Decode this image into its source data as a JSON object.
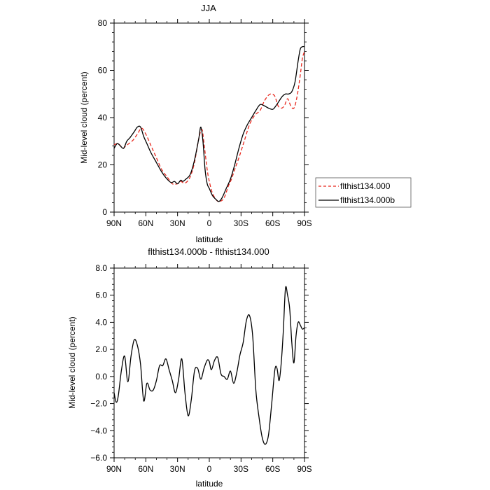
{
  "chart_data": [
    {
      "type": "line",
      "title": "JJA",
      "xlabel": "latitude",
      "ylabel": "Mid-level cloud (percent)",
      "xlim": [
        90,
        -90
      ],
      "ylim": [
        0,
        80
      ],
      "x_ticks": [
        90,
        60,
        30,
        0,
        -30,
        -60,
        -90
      ],
      "x_tick_labels": [
        "90N",
        "60N",
        "30N",
        "0",
        "30S",
        "60S",
        "90S"
      ],
      "y_ticks": [
        0,
        20,
        40,
        60,
        80
      ],
      "y_tick_labels": [
        "0",
        "20",
        "40",
        "60",
        "80"
      ],
      "legend_position": "right",
      "series": [
        {
          "name": "flthist134.000",
          "color": "#e8281e",
          "dash": "dashed",
          "x": [
            90,
            86,
            82,
            79,
            76,
            72,
            68,
            64,
            60,
            55,
            50,
            45,
            40,
            35,
            30,
            27,
            25,
            22,
            18,
            14,
            10,
            7,
            5,
            2,
            0,
            -3,
            -7,
            -10,
            -14,
            -18,
            -21,
            -24,
            -28,
            -33,
            -38,
            -43,
            -48,
            -52,
            -56,
            -59,
            -62,
            -65,
            -68,
            -71,
            -74,
            -77,
            -80,
            -83,
            -86,
            -88,
            -90
          ],
          "y": [
            28.5,
            29,
            27,
            28,
            29,
            30.5,
            33,
            35.5,
            33,
            28,
            23,
            18,
            15,
            12,
            12,
            13,
            12.5,
            12.5,
            15,
            21,
            31,
            35,
            29,
            18,
            13,
            8,
            5,
            4.5,
            6,
            11,
            14,
            18,
            23,
            30,
            37,
            41,
            43,
            47,
            49.5,
            50,
            49,
            45,
            44,
            45,
            48,
            45,
            44,
            49,
            58,
            65,
            68
          ]
        },
        {
          "name": "flthist134.000b",
          "color": "#000000",
          "dash": "solid",
          "x": [
            90,
            87,
            84,
            81,
            78,
            75,
            71,
            68,
            65,
            62,
            59,
            55,
            50,
            45,
            40,
            36,
            33,
            30,
            27,
            25,
            22,
            18,
            14,
            10,
            8,
            6,
            4,
            2,
            0,
            -3,
            -6,
            -9,
            -12,
            -16,
            -20,
            -24,
            -28,
            -32,
            -36,
            -40,
            -44,
            -48,
            -52,
            -56,
            -60,
            -63,
            -66,
            -69,
            -72,
            -75,
            -78,
            -81,
            -84,
            -86,
            -88,
            -90
          ],
          "y": [
            27,
            29,
            28,
            27,
            30,
            31.5,
            34,
            36,
            36,
            32,
            29,
            25,
            21,
            17,
            14,
            12.5,
            13,
            12,
            13.5,
            13,
            14,
            16,
            22,
            31,
            36,
            30,
            18,
            12,
            10,
            7,
            5.5,
            4.5,
            6,
            10,
            14,
            20,
            27,
            33,
            37,
            40,
            43,
            45.5,
            45,
            44,
            43.5,
            45,
            47,
            49,
            50,
            50,
            51,
            55,
            64,
            69,
            70,
            70
          ]
        }
      ]
    },
    {
      "type": "line",
      "title": "flthist134.000b - flthist134.000",
      "xlabel": "latitude",
      "ylabel": "Mid-level cloud (percent)",
      "xlim": [
        90,
        -90
      ],
      "ylim": [
        -6,
        8
      ],
      "x_ticks": [
        90,
        60,
        30,
        0,
        -30,
        -60,
        -90
      ],
      "x_tick_labels": [
        "90N",
        "60N",
        "30N",
        "0",
        "30S",
        "60S",
        "90S"
      ],
      "y_ticks": [
        -6,
        -4,
        -2,
        0,
        2,
        4,
        6,
        8
      ],
      "y_tick_labels": [
        "−6.0",
        "−4.0",
        "−2.0",
        "0.0",
        "2.0",
        "4.0",
        "6.0",
        "8.0"
      ],
      "series": [
        {
          "color": "#000000",
          "dash": "solid",
          "x": [
            90,
            88,
            86,
            83,
            80,
            77,
            74,
            71,
            68,
            65,
            62,
            59,
            56,
            53,
            50,
            47,
            44,
            41,
            38,
            35,
            32,
            29,
            26,
            23,
            20,
            17,
            14,
            11,
            8,
            5,
            2,
            0,
            -2,
            -5,
            -8,
            -11,
            -14,
            -17,
            -20,
            -23,
            -26,
            -29,
            -32,
            -35,
            -38,
            -41,
            -44,
            -47,
            -50,
            -53,
            -56,
            -59,
            -62,
            -64,
            -66,
            -68,
            -70,
            -72,
            -74,
            -76,
            -78,
            -80,
            -82,
            -84,
            -86,
            -88,
            -90
          ],
          "y": [
            -1.2,
            -1.9,
            -1.4,
            0.5,
            1.5,
            -0.4,
            1.5,
            2.7,
            2.3,
            0.9,
            -1.8,
            -0.5,
            -1.0,
            -1.0,
            -0.3,
            0.8,
            0.8,
            1.3,
            0.5,
            -0.3,
            -1.2,
            -0.2,
            1.3,
            -1.2,
            -2.9,
            -1.7,
            0.4,
            0.6,
            -0.2,
            0.6,
            1.2,
            1.1,
            0.5,
            1.2,
            1.4,
            0.2,
            0.0,
            -0.2,
            0.4,
            -0.5,
            0.3,
            1.6,
            2.5,
            4.1,
            4.5,
            3.0,
            -1.0,
            -3.0,
            -4.5,
            -5.0,
            -4.3,
            -2.0,
            0.5,
            0.6,
            -0.3,
            1.0,
            3.4,
            6.5,
            6.0,
            5.0,
            2.5,
            1.0,
            3.0,
            4.0,
            3.8,
            3.5,
            3.6
          ]
        }
      ]
    }
  ]
}
